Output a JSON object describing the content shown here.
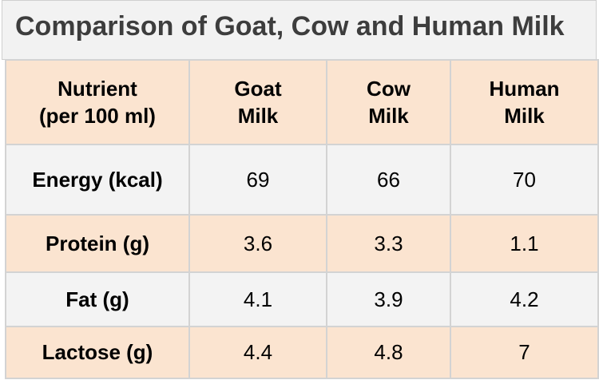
{
  "title": "Comparison of Goat, Cow and Human Milk",
  "chart_data": {
    "type": "table",
    "title": "Comparison of Goat, Cow and Human Milk",
    "columns": [
      [
        "Nutrient",
        "(per 100 ml)"
      ],
      [
        "Goat",
        "Milk"
      ],
      [
        "Cow",
        "Milk"
      ],
      [
        "Human",
        "Milk"
      ]
    ],
    "rows": [
      {
        "label": "Energy (kcal)",
        "values": [
          "69",
          "66",
          "70"
        ]
      },
      {
        "label": "Protein (g)",
        "values": [
          "3.6",
          "3.3",
          "1.1"
        ]
      },
      {
        "label": "Fat (g)",
        "values": [
          "4.1",
          "3.9",
          "4.2"
        ]
      },
      {
        "label": "Lactose (g)",
        "values": [
          "4.4",
          "4.8",
          "7"
        ]
      }
    ]
  },
  "colors": {
    "header_row": "#fbe4d0",
    "shaded_row": "#fbe4d0",
    "plain_row": "#f3f3f3",
    "title_bg": "#f2f2f2",
    "grid": "#d3d3d3"
  }
}
